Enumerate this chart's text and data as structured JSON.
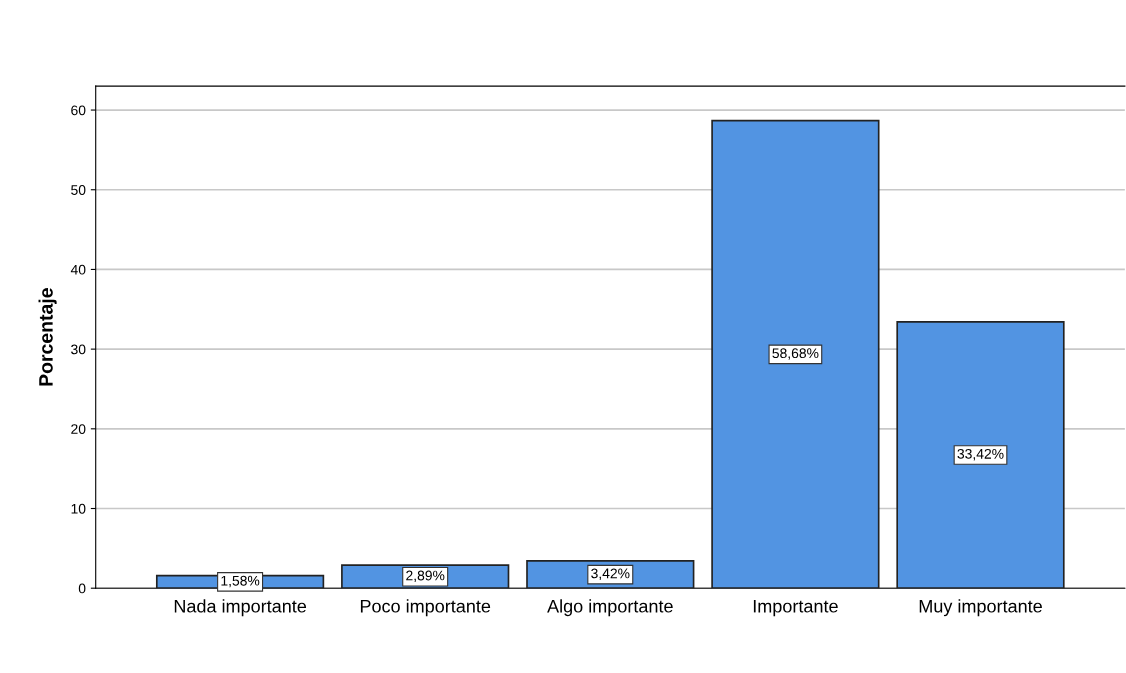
{
  "chart_data": {
    "type": "bar",
    "ylabel": "Porcentaje",
    "categories": [
      "Nada importante",
      "Poco importante",
      "Algo importante",
      "Importante",
      "Muy importante"
    ],
    "values": [
      1.58,
      2.89,
      3.42,
      58.68,
      33.42
    ],
    "value_labels": [
      "1,58%",
      "2,89%",
      "3,42%",
      "58,68%",
      "33,42%"
    ],
    "color": "#5294e2",
    "ylim": [
      0,
      63
    ],
    "yticks": [
      0,
      10,
      20,
      30,
      40,
      50,
      60
    ],
    "grid": "y",
    "legend": false
  }
}
